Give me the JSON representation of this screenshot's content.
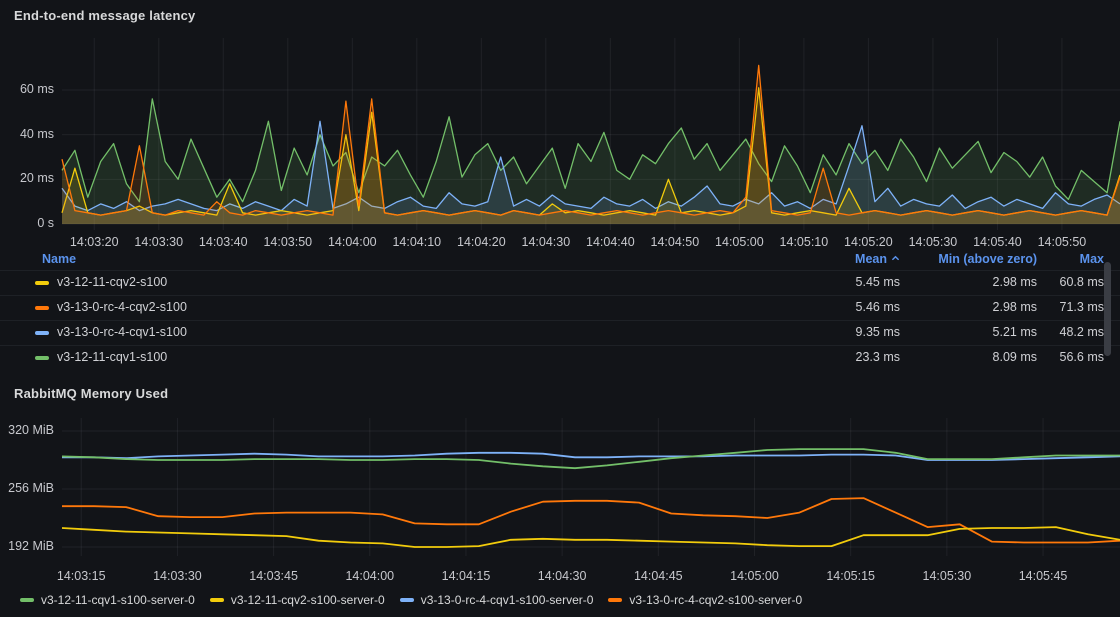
{
  "panels": [
    {
      "title": "End-to-end message latency",
      "chart_data": {
        "type": "line",
        "unit": "ms",
        "ylim": [
          0,
          73
        ],
        "grid": true,
        "step_seconds": 2,
        "x_start": "14:03:15",
        "x_ticks": [
          {
            "s": 5,
            "label": "14:03:20"
          },
          {
            "s": 15,
            "label": "14:03:30"
          },
          {
            "s": 25,
            "label": "14:03:40"
          },
          {
            "s": 35,
            "label": "14:03:50"
          },
          {
            "s": 45,
            "label": "14:04:00"
          },
          {
            "s": 55,
            "label": "14:04:10"
          },
          {
            "s": 65,
            "label": "14:04:20"
          },
          {
            "s": 75,
            "label": "14:04:30"
          },
          {
            "s": 85,
            "label": "14:04:40"
          },
          {
            "s": 95,
            "label": "14:04:50"
          },
          {
            "s": 105,
            "label": "14:05:00"
          },
          {
            "s": 115,
            "label": "14:05:10"
          },
          {
            "s": 125,
            "label": "14:05:20"
          },
          {
            "s": 135,
            "label": "14:05:30"
          },
          {
            "s": 145,
            "label": "14:05:40"
          },
          {
            "s": 155,
            "label": "14:05:50"
          }
        ],
        "y_ticks": [
          {
            "v": 0,
            "label": "0 s"
          },
          {
            "v": 20,
            "label": "20 ms"
          },
          {
            "v": 40,
            "label": "40 ms"
          },
          {
            "v": 60,
            "label": "60 ms"
          }
        ],
        "series": [
          {
            "name": "v3-12-11-cqv2-s100",
            "color": "#F2CC0C",
            "values": [
              5,
              25,
              5,
              4,
              5,
              6,
              8,
              5,
              4,
              5,
              6,
              5,
              4,
              18,
              5,
              4,
              5,
              6,
              5,
              4,
              5,
              6,
              40,
              6,
              50,
              5,
              4,
              5,
              6,
              5,
              4,
              5,
              6,
              5,
              4,
              6,
              5,
              4,
              9,
              5,
              6,
              5,
              4,
              5,
              6,
              5,
              4,
              20,
              5,
              6,
              5,
              4,
              5,
              8,
              61,
              5,
              4,
              5,
              6,
              5,
              4,
              16,
              5,
              6,
              5,
              4,
              5,
              6,
              5,
              4,
              5,
              6,
              5,
              4,
              5,
              6,
              5,
              4,
              5,
              6,
              5,
              4,
              22
            ]
          },
          {
            "name": "v3-13-0-rc-4-cqv2-s100",
            "color": "#FF780A",
            "values": [
              29,
              6,
              5,
              4,
              5,
              6,
              35,
              5,
              4,
              6,
              5,
              4,
              10,
              5,
              4,
              6,
              5,
              4,
              5,
              6,
              5,
              4,
              55,
              8,
              56,
              5,
              4,
              5,
              6,
              5,
              4,
              5,
              6,
              5,
              4,
              6,
              5,
              4,
              5,
              6,
              5,
              4,
              5,
              6,
              5,
              4,
              5,
              6,
              5,
              4,
              5,
              6,
              5,
              12,
              71,
              6,
              5,
              4,
              5,
              25,
              5,
              4,
              5,
              6,
              5,
              4,
              5,
              6,
              5,
              4,
              5,
              6,
              5,
              4,
              5,
              6,
              5,
              4,
              5,
              6,
              5,
              4,
              21
            ]
          },
          {
            "name": "v3-13-0-rc-4-cqv1-s100",
            "color": "#7EB2F8",
            "values": [
              16,
              8,
              6,
              9,
              7,
              10,
              6,
              8,
              9,
              11,
              9,
              7,
              6,
              9,
              7,
              10,
              8,
              6,
              11,
              8,
              46,
              7,
              9,
              12,
              8,
              7,
              10,
              12,
              8,
              7,
              14,
              9,
              8,
              10,
              30,
              8,
              11,
              8,
              13,
              9,
              8,
              7,
              12,
              9,
              8,
              11,
              7,
              10,
              8,
              12,
              17,
              9,
              8,
              11,
              9,
              14,
              8,
              10,
              7,
              11,
              9,
              26,
              44,
              10,
              16,
              8,
              11,
              9,
              8,
              13,
              7,
              10,
              12,
              8,
              11,
              9,
              7,
              14,
              9,
              8,
              11,
              13,
              9
            ]
          },
          {
            "name": "v3-12-11-cqv1-s100",
            "color": "#73BF69",
            "values": [
              24,
              33,
              12,
              28,
              36,
              18,
              10,
              56,
              28,
              20,
              38,
              25,
              12,
              20,
              10,
              24,
              46,
              15,
              34,
              22,
              40,
              26,
              32,
              14,
              30,
              26,
              33,
              22,
              12,
              28,
              48,
              21,
              31,
              36,
              24,
              30,
              18,
              26,
              34,
              16,
              36,
              28,
              41,
              24,
              20,
              31,
              27,
              36,
              43,
              29,
              36,
              24,
              31,
              38,
              27,
              19,
              35,
              26,
              14,
              31,
              22,
              36,
              27,
              33,
              24,
              38,
              30,
              19,
              34,
              25,
              31,
              37,
              23,
              32,
              28,
              21,
              30,
              17,
              11,
              24,
              19,
              14,
              46
            ]
          }
        ]
      },
      "table": {
        "headers": {
          "name": "Name",
          "mean": "Mean",
          "min": "Min (above zero)",
          "max": "Max"
        },
        "sort": {
          "column": "Mean",
          "direction": "asc"
        },
        "rows": [
          {
            "name": "v3-12-11-cqv2-s100",
            "color": "#F2CC0C",
            "mean": "5.45 ms",
            "min": "2.98 ms",
            "max": "60.8 ms"
          },
          {
            "name": "v3-13-0-rc-4-cqv2-s100",
            "color": "#FF780A",
            "mean": "5.46 ms",
            "min": "2.98 ms",
            "max": "71.3 ms"
          },
          {
            "name": "v3-13-0-rc-4-cqv1-s100",
            "color": "#7EB2F8",
            "mean": "9.35 ms",
            "min": "5.21 ms",
            "max": "48.2 ms"
          },
          {
            "name": "v3-12-11-cqv1-s100",
            "color": "#73BF69",
            "mean": "23.3 ms",
            "min": "8.09 ms",
            "max": "56.6 ms"
          }
        ]
      }
    },
    {
      "title": "RabbitMQ Memory Used",
      "chart_data": {
        "type": "line",
        "unit": "MiB",
        "ylim": [
          176,
          330
        ],
        "grid": true,
        "step_seconds": 5,
        "x_start": "14:03:12",
        "x_ticks": [
          {
            "s": 3,
            "label": "14:03:15"
          },
          {
            "s": 18,
            "label": "14:03:30"
          },
          {
            "s": 33,
            "label": "14:03:45"
          },
          {
            "s": 48,
            "label": "14:04:00"
          },
          {
            "s": 63,
            "label": "14:04:15"
          },
          {
            "s": 78,
            "label": "14:04:30"
          },
          {
            "s": 93,
            "label": "14:04:45"
          },
          {
            "s": 108,
            "label": "14:05:00"
          },
          {
            "s": 123,
            "label": "14:05:15"
          },
          {
            "s": 138,
            "label": "14:05:30"
          },
          {
            "s": 153,
            "label": "14:05:45"
          }
        ],
        "y_ticks": [
          {
            "v": 192,
            "label": "192 MiB"
          },
          {
            "v": 256,
            "label": "256 MiB"
          },
          {
            "v": 320,
            "label": "320 MiB"
          }
        ],
        "series": [
          {
            "name": "v3-12-11-cqv1-s100-server-0",
            "color": "#73BF69",
            "values": [
              292,
              291,
              289,
              288,
              288,
              288,
              289,
              289,
              289,
              288,
              288,
              289,
              289,
              288,
              284,
              281,
              279,
              282,
              286,
              290,
              293,
              296,
              299,
              300,
              300,
              300,
              296,
              289,
              289,
              289,
              291,
              293,
              293,
              293
            ]
          },
          {
            "name": "v3-12-11-cqv2-s100-server-0",
            "color": "#F2CC0C",
            "values": [
              213,
              211,
              209,
              208,
              207,
              206,
              205,
              204,
              199,
              197,
              196,
              192,
              192,
              193,
              200,
              201,
              200,
              200,
              199,
              198,
              197,
              196,
              194,
              193,
              193,
              205,
              205,
              205,
              212,
              213,
              213,
              214,
              206,
              200
            ]
          },
          {
            "name": "v3-13-0-rc-4-cqv1-s100-server-0",
            "color": "#7EB2F8",
            "values": [
              291,
              291,
              290,
              292,
              293,
              294,
              295,
              294,
              292,
              292,
              292,
              293,
              295,
              296,
              296,
              295,
              291,
              291,
              292,
              292,
              292,
              293,
              293,
              293,
              294,
              294,
              293,
              288,
              288,
              288,
              289,
              290,
              291,
              292
            ]
          },
          {
            "name": "v3-13-0-rc-4-cqv2-s100-server-0",
            "color": "#FF780A",
            "values": [
              237,
              237,
              236,
              226,
              225,
              225,
              229,
              230,
              230,
              230,
              228,
              218,
              217,
              217,
              231,
              242,
              243,
              243,
              241,
              229,
              227,
              226,
              224,
              230,
              245,
              246,
              230,
              214,
              217,
              198,
              197,
              197,
              197,
              199
            ]
          }
        ]
      }
    }
  ]
}
